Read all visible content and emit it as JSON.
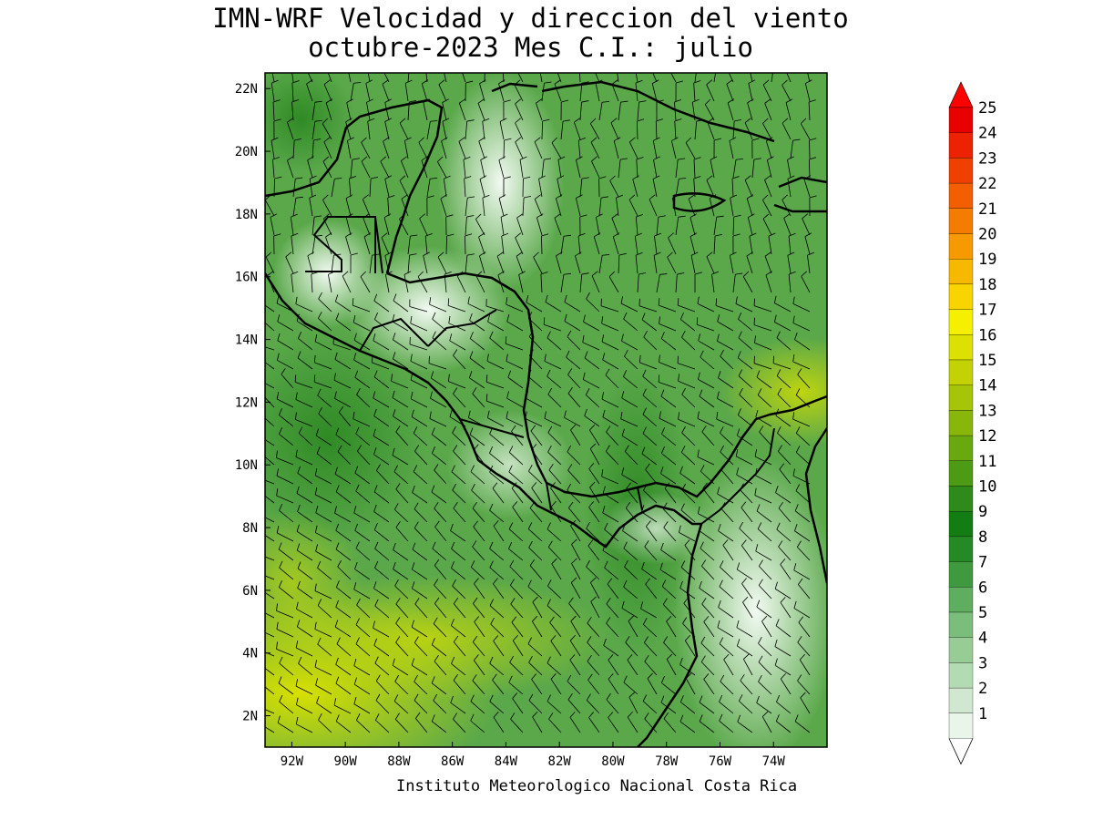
{
  "title": {
    "line1": "IMN-WRF Velocidad y direccion del viento",
    "line2": "octubre-2023 Mes C.I.: julio"
  },
  "credit": "Instituto Meteorologico Nacional Costa Rica",
  "map": {
    "lon_range": [
      -93.0,
      -72.0
    ],
    "lat_range": [
      1.0,
      22.5
    ],
    "lat_ticks": [
      "22N",
      "20N",
      "18N",
      "16N",
      "14N",
      "12N",
      "10N",
      "8N",
      "6N",
      "4N",
      "2N"
    ],
    "lon_ticks": [
      "92W",
      "90W",
      "88W",
      "86W",
      "84W",
      "82W",
      "80W",
      "78W",
      "76W",
      "74W"
    ],
    "field": "wind speed and direction (barbs)"
  },
  "colorbar": {
    "levels": [
      "1",
      "2",
      "3",
      "4",
      "5",
      "6",
      "7",
      "8",
      "9",
      "10",
      "11",
      "12",
      "13",
      "14",
      "15",
      "16",
      "17",
      "18",
      "19",
      "20",
      "21",
      "22",
      "23",
      "24",
      "25"
    ],
    "colors": [
      "#e8f5e8",
      "#cfe8cf",
      "#b3dbb3",
      "#97cc97",
      "#7bbd7b",
      "#5fae5f",
      "#3f9a3f",
      "#258a25",
      "#137c13",
      "#2e8b1b",
      "#4d9a14",
      "#6aa80f",
      "#88b60b",
      "#a6c408",
      "#c3d205",
      "#dde003",
      "#f5ef00",
      "#f8d400",
      "#f7b800",
      "#f69a00",
      "#f47c00",
      "#f25e00",
      "#ef4000",
      "#ec2200",
      "#e80000"
    ],
    "overflow_color": "#ff0000"
  }
}
